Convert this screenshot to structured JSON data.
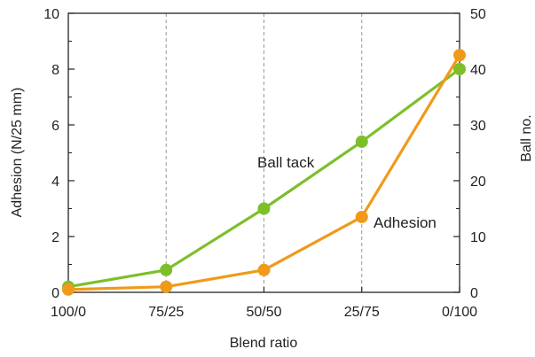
{
  "chart_data": {
    "type": "line",
    "categories": [
      "100/0",
      "75/25",
      "50/50",
      "25/75",
      "0/100"
    ],
    "xlabel": "Blend ratio",
    "ylabel_left": "Adhesion (N/25 mm)",
    "ylabel_right": "Ball no.",
    "ylim_left": [
      0,
      10
    ],
    "ylim_right": [
      0,
      50
    ],
    "yticks_left": [
      0,
      2,
      4,
      6,
      8,
      10
    ],
    "yticks_right": [
      0,
      10,
      20,
      30,
      40,
      50
    ],
    "grid": "vertical dashed",
    "series": [
      {
        "name": "Ball tack",
        "axis": "right",
        "color": "#7dbf2a",
        "values": [
          1,
          4,
          15,
          27,
          40
        ]
      },
      {
        "name": "Adhesion",
        "axis": "left",
        "color": "#f09a1a",
        "values": [
          0.1,
          0.2,
          0.8,
          2.7,
          8.5
        ]
      }
    ]
  }
}
